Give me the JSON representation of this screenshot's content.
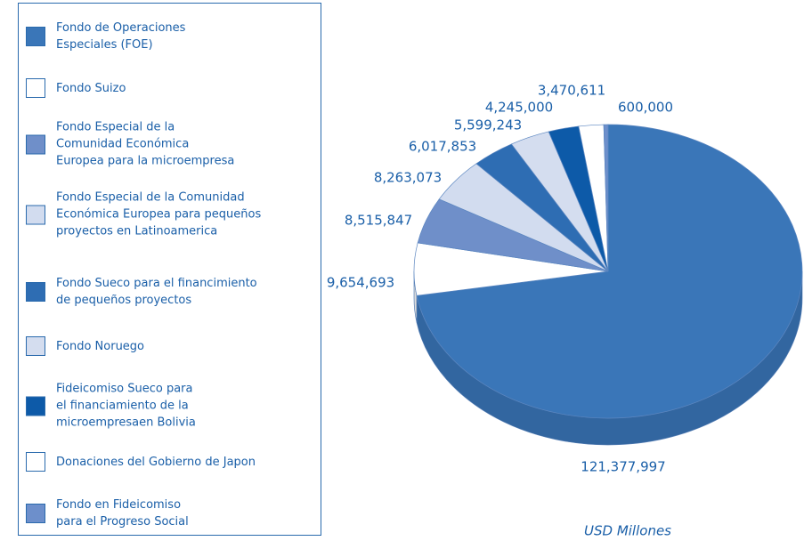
{
  "chart_data": {
    "type": "pie3d",
    "categories": [
      "Fondo de Operaciones\nEspeciales (FOE)",
      "Fondo Suizo",
      "Fondo Especial de la\nComunidad Económica\nEuropea para la microempresa",
      "Fondo Especial de la Comunidad\nEconómica Europea para pequeños\nproyectos en Latinoamerica",
      "Fondo Sueco para el financimiento\nde pequeños proyectos",
      "Fondo Noruego",
      "Fideicomiso Sueco para\nel financiamiento de la\nmicroempresaen Bolivia",
      "Donaciones del Gobierno de Japon",
      "Fondo en Fideicomiso\npara el Progreso Social"
    ],
    "values": [
      121377997,
      9654693,
      8515847,
      8263073,
      6017853,
      5599243,
      4245000,
      3470611,
      600000
    ],
    "value_labels": [
      "121,377,997",
      "9,654,693",
      "8,515,847",
      "8,263,073",
      "6,017,853",
      "5,599,243",
      "4,245,000",
      "3,470,611",
      "600,000"
    ],
    "colors": [
      "#3a76b8",
      "#ffffff",
      "#6f8fc9",
      "#d2dcef",
      "#2e6db3",
      "#d4ddef",
      "#0d5aa8",
      "#ffffff",
      "#6d8fcb"
    ],
    "annotation": "USD Millones"
  }
}
